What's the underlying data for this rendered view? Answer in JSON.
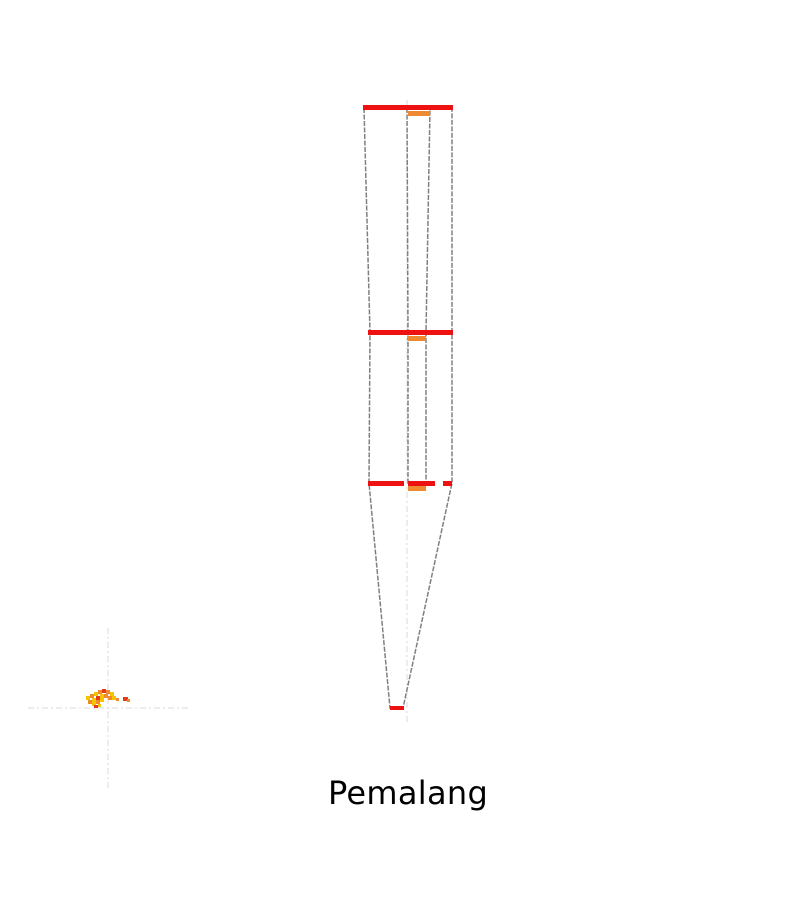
{
  "title": "Pemalang",
  "colors": {
    "background": "#ffffff",
    "bar_primary": "#ee1111",
    "bar_secondary": "#f08a30",
    "outline": "#808080",
    "axis": "#d8d8d8",
    "map_yellow": "#f5c400",
    "map_orange": "#f08a30",
    "map_red": "#e53a1a"
  }
}
